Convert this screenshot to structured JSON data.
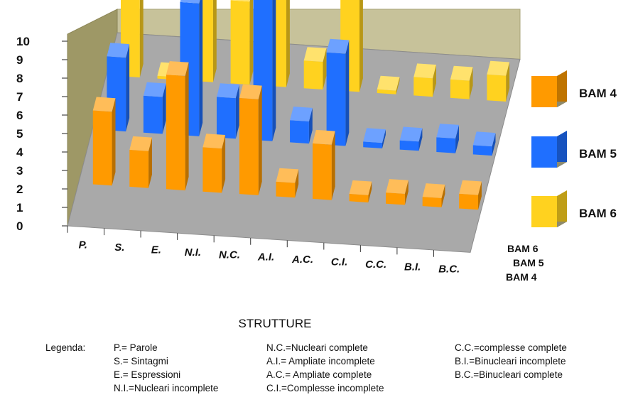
{
  "chart_data": {
    "type": "bar",
    "subtype": "3d-grouped-depth",
    "title": "",
    "xlabel": "STRUTTURE",
    "ylabel": "",
    "ylim": [
      0,
      10
    ],
    "yticks": [
      0,
      1,
      2,
      3,
      4,
      5,
      6,
      7,
      8,
      9,
      10
    ],
    "categories": [
      "P.",
      "S.",
      "E.",
      "N.I.",
      "N.C.",
      "A.I.",
      "A.C.",
      "C.I.",
      "C.C.",
      "B.I.",
      "B.C."
    ],
    "series": [
      {
        "name": "BAM 4",
        "color": "#FF9A00",
        "values": [
          4.0,
          2.0,
          6.2,
          2.4,
          5.2,
          0.8,
          3.0,
          0.4,
          0.6,
          0.5,
          0.8
        ]
      },
      {
        "name": "BAM 5",
        "color": "#1F6FFF",
        "values": [
          4.0,
          2.0,
          7.2,
          2.2,
          8.0,
          1.2,
          5.0,
          0.3,
          0.5,
          0.8,
          0.5
        ]
      },
      {
        "name": "BAM 6",
        "color": "#FFD21F",
        "values": [
          4.5,
          0.0,
          8.8,
          4.5,
          9.5,
          1.5,
          7.2,
          0.2,
          1.0,
          1.0,
          1.4
        ]
      }
    ],
    "depth_labels": [
      "BAM 6",
      "BAM 5",
      "BAM 4"
    ],
    "legend_position": "right",
    "grid": false
  },
  "legenda": {
    "title": "Legenda:",
    "columns": [
      [
        "P.= Parole",
        "S.= Sintagmi",
        "E.= Espressioni",
        "N.I.=Nucleari incomplete"
      ],
      [
        "N.C.=Nucleari complete",
        "A.I.= Ampliate incomplete",
        "A.C.= Ampliate complete",
        "C.I.=Complesse incomplete"
      ],
      [
        "C.C.=complesse complete",
        "B.I.=Binucleari incomplete",
        "B.C.=Binucleari complete"
      ]
    ]
  }
}
